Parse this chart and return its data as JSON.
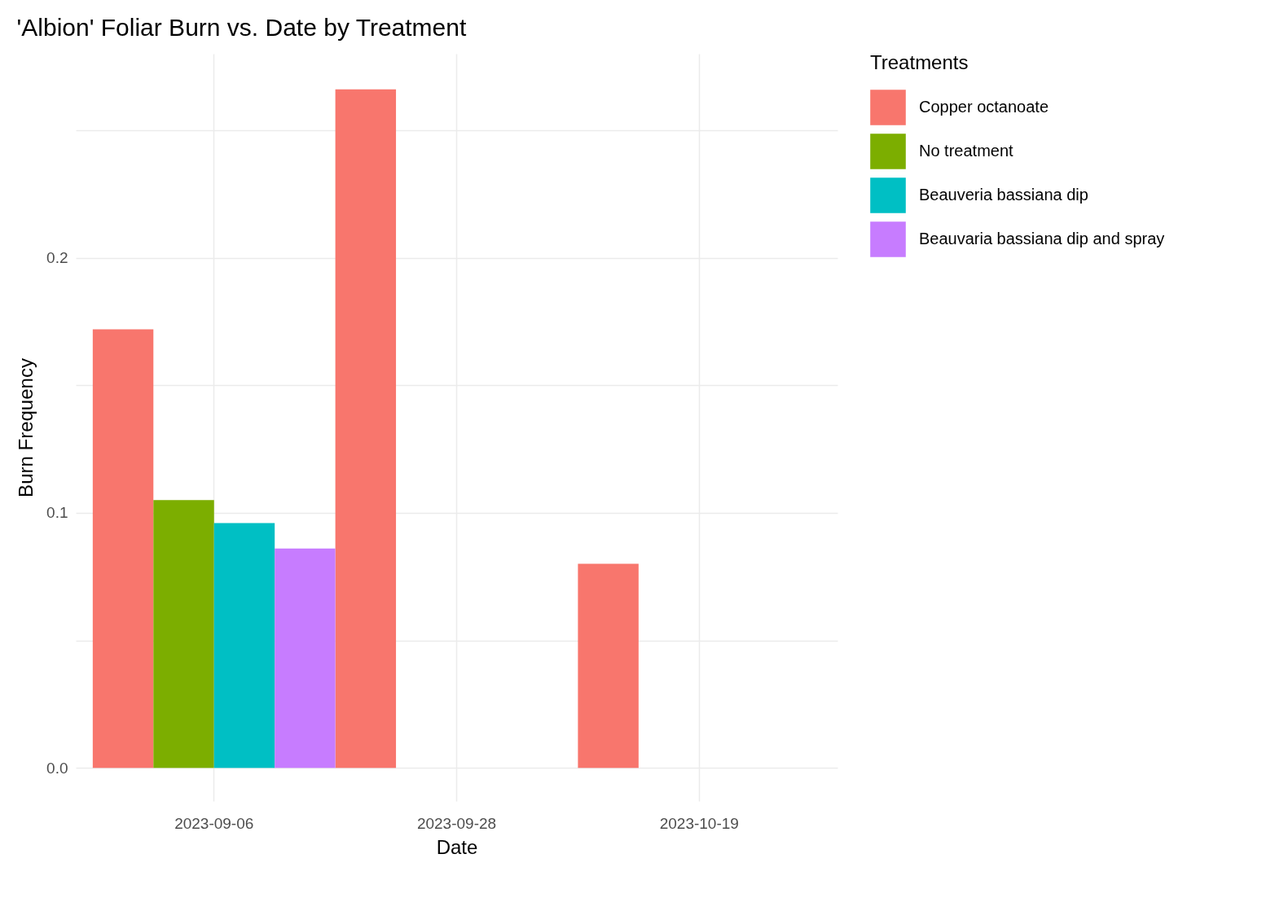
{
  "chart_data": {
    "type": "bar",
    "title": "'Albion' Foliar Burn vs. Date by Treatment",
    "xlabel": "Date",
    "ylabel": "Burn Frequency",
    "legend_title": "Treatments",
    "categories": [
      "2023-09-06",
      "2023-09-28",
      "2023-10-19"
    ],
    "series": [
      {
        "name": "Copper octanoate",
        "color": "#f8766d",
        "values": [
          0.172,
          0.266,
          0.08
        ]
      },
      {
        "name": "No treatment",
        "color": "#7cae00",
        "values": [
          0.105,
          0,
          0
        ]
      },
      {
        "name": "Beauveria bassiana dip",
        "color": "#00bfc4",
        "values": [
          0.096,
          0,
          0
        ]
      },
      {
        "name": "Beauvaria bassiana dip and spray",
        "color": "#c77cff",
        "values": [
          0.086,
          0,
          0
        ]
      }
    ],
    "ylim": [
      -0.013,
      0.28
    ],
    "yticks": [
      {
        "value": 0,
        "label": "0.0"
      },
      {
        "value": 0.05,
        "label": null
      },
      {
        "value": 0.1,
        "label": "0.1"
      },
      {
        "value": 0.15,
        "label": null
      },
      {
        "value": 0.2,
        "label": "0.2"
      },
      {
        "value": 0.25,
        "label": null
      }
    ],
    "grid": true,
    "legend": "right"
  }
}
